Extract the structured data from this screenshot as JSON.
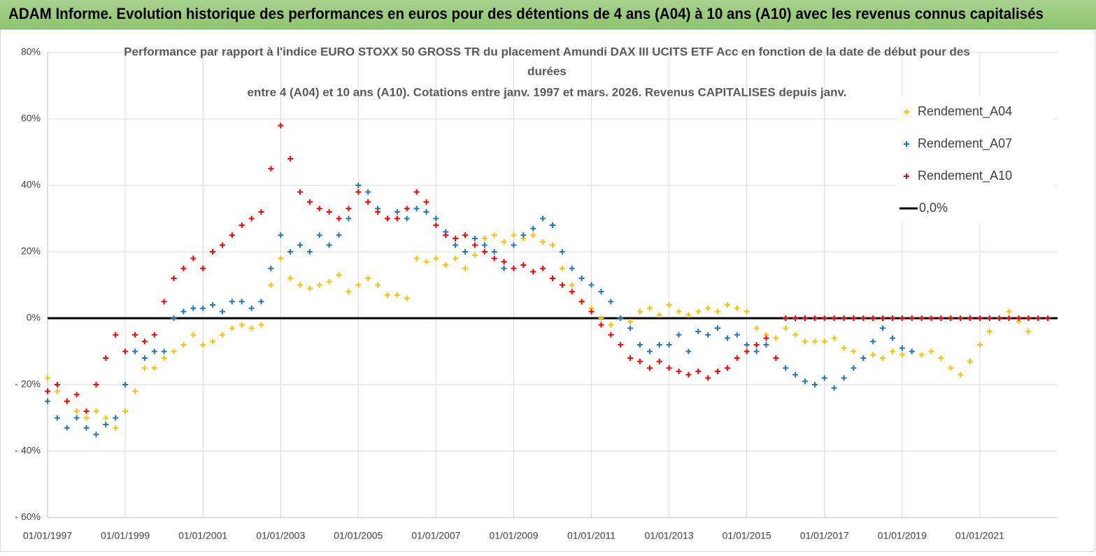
{
  "header": {
    "title": "ADAM Informe. Evolution historique des performances en euros pour des détentions de 4 ans (A04) à 10 ans (A10) avec les revenus connus capitalisés"
  },
  "chart_data": {
    "type": "scatter",
    "title": [
      "Performance par rapport à l'indice EURO STOXX 50 GROSS TR  du placement Amundi DAX III UCITS ETF Acc en fonction de la date de début pour des",
      "durées",
      "entre 4 (A04) et 10 ans (A10). Cotations entre janv. 1997 et mars. 2026. Revenus CAPITALISES depuis janv."
    ],
    "xlim": [
      1997,
      2023
    ],
    "xticks": [
      {
        "value": 1997,
        "label": "01/01/1997"
      },
      {
        "value": 1999,
        "label": "01/01/1999"
      },
      {
        "value": 2001,
        "label": "01/01/2001"
      },
      {
        "value": 2003,
        "label": "01/01/2003"
      },
      {
        "value": 2005,
        "label": "01/01/2005"
      },
      {
        "value": 2007,
        "label": "01/01/2007"
      },
      {
        "value": 2009,
        "label": "01/01/2009"
      },
      {
        "value": 2011,
        "label": "01/01/2011"
      },
      {
        "value": 2013,
        "label": "01/01/2013"
      },
      {
        "value": 2015,
        "label": "01/01/2015"
      },
      {
        "value": 2017,
        "label": "01/01/2017"
      },
      {
        "value": 2019,
        "label": "01/01/2019"
      },
      {
        "value": 2021,
        "label": "01/01/2021"
      }
    ],
    "ylim": [
      -60,
      80
    ],
    "yticks": [
      {
        "value": -60,
        "label": "- 60%"
      },
      {
        "value": -40,
        "label": "- 40%"
      },
      {
        "value": -20,
        "label": "- 20%"
      },
      {
        "value": 0,
        "label": "0%"
      },
      {
        "value": 20,
        "label": "20%"
      },
      {
        "value": 40,
        "label": "40%"
      },
      {
        "value": 60,
        "label": "60%"
      },
      {
        "value": 80,
        "label": "80%"
      }
    ],
    "grid": true,
    "x": [
      1997,
      1997.25,
      1997.5,
      1997.75,
      1998,
      1998.25,
      1998.5,
      1998.75,
      1999,
      1999.25,
      1999.5,
      1999.75,
      2000,
      2000.25,
      2000.5,
      2000.75,
      2001,
      2001.25,
      2001.5,
      2001.75,
      2002,
      2002.25,
      2002.5,
      2002.75,
      2003,
      2003.25,
      2003.5,
      2003.75,
      2004,
      2004.25,
      2004.5,
      2004.75,
      2005,
      2005.25,
      2005.5,
      2005.75,
      2006,
      2006.25,
      2006.5,
      2006.75,
      2007,
      2007.25,
      2007.5,
      2007.75,
      2008,
      2008.25,
      2008.5,
      2008.75,
      2009,
      2009.25,
      2009.5,
      2009.75,
      2010,
      2010.25,
      2010.5,
      2010.75,
      2011,
      2011.25,
      2011.5,
      2011.75,
      2012,
      2012.25,
      2012.5,
      2012.75,
      2013,
      2013.25,
      2013.5,
      2013.75,
      2014,
      2014.25,
      2014.5,
      2014.75,
      2015,
      2015.25,
      2015.5,
      2015.75,
      2016,
      2016.25,
      2016.5,
      2016.75,
      2017,
      2017.25,
      2017.5,
      2017.75,
      2018,
      2018.25,
      2018.5,
      2018.75,
      2019,
      2019.25,
      2019.5,
      2019.75,
      2020,
      2020.25,
      2020.5,
      2020.75,
      2021,
      2021.25,
      2021.5,
      2021.75,
      2022,
      2022.25,
      2022.5,
      2022.75
    ],
    "series": [
      {
        "name": "Rendement_A04",
        "color": "#ffc000",
        "values": [
          -18,
          -22,
          -25,
          -28,
          -30,
          -28,
          -30,
          -33,
          -28,
          -22,
          -15,
          -15,
          -12,
          -10,
          -8,
          -5,
          -8,
          -7,
          -5,
          -3,
          -2,
          -3,
          -2,
          10,
          18,
          12,
          10,
          9,
          10,
          11,
          13,
          8,
          10,
          12,
          10,
          7,
          7,
          6,
          18,
          17,
          18,
          16,
          18,
          15,
          19,
          24,
          25,
          23,
          25,
          24,
          25,
          23,
          22,
          15,
          10,
          5,
          3,
          0,
          -2,
          0,
          -1,
          2,
          3,
          1,
          4,
          2,
          1,
          2,
          3,
          2,
          4,
          3,
          2,
          -3,
          -5,
          -6,
          -3,
          -5,
          -7,
          -7,
          -7,
          -6,
          -9,
          -10,
          -12,
          -11,
          -12,
          -10,
          -11,
          -10,
          -11,
          -10,
          -12,
          -15,
          -17,
          -13,
          -8,
          -4,
          0,
          2,
          -1,
          -4,
          null,
          null
        ]
      },
      {
        "name": "Rendement_A07",
        "color": "#1f77c4",
        "values": [
          -25,
          -30,
          -33,
          -30,
          -33,
          -35,
          -32,
          -30,
          -20,
          -10,
          -12,
          -10,
          -10,
          0,
          2,
          3,
          3,
          4,
          2,
          5,
          5,
          3,
          5,
          15,
          25,
          20,
          22,
          20,
          25,
          22,
          25,
          30,
          40,
          38,
          33,
          30,
          32,
          30,
          33,
          32,
          30,
          26,
          22,
          20,
          24,
          22,
          20,
          15,
          22,
          25,
          27,
          30,
          28,
          20,
          15,
          12,
          10,
          8,
          5,
          0,
          -3,
          -8,
          -10,
          -8,
          -8,
          -5,
          -10,
          -4,
          -5,
          -3,
          -6,
          -5,
          -8,
          -10,
          -8,
          -12,
          -15,
          -17,
          -19,
          -20,
          -18,
          -21,
          -18,
          -15,
          -12,
          -7,
          -3,
          -6,
          -9,
          -10,
          null,
          null,
          null,
          null,
          null,
          null,
          null,
          null,
          null,
          null,
          null,
          null,
          null,
          null
        ]
      },
      {
        "name": "Rendement_A10",
        "color": "#ff0000",
        "values": [
          -22,
          -20,
          -25,
          -23,
          -28,
          -20,
          -12,
          -5,
          -10,
          -5,
          -7,
          -5,
          5,
          12,
          15,
          18,
          15,
          20,
          22,
          25,
          28,
          30,
          32,
          45,
          58,
          48,
          38,
          35,
          33,
          32,
          30,
          33,
          38,
          35,
          32,
          30,
          30,
          33,
          38,
          35,
          28,
          25,
          24,
          25,
          22,
          20,
          18,
          17,
          15,
          16,
          14,
          15,
          12,
          10,
          8,
          5,
          2,
          -2,
          -5,
          -8,
          -12,
          -13,
          -15,
          -13,
          -15,
          -16,
          -17,
          -16,
          -18,
          -16,
          -15,
          -12,
          -10,
          -8,
          -6,
          -12,
          0,
          0,
          0,
          0,
          0,
          0,
          0,
          0,
          0,
          0,
          0,
          0,
          0,
          0,
          0,
          0,
          0,
          0,
          0,
          0,
          0,
          0,
          0,
          0,
          0,
          0,
          0,
          0
        ]
      }
    ],
    "reference_line": {
      "name": "0,0%",
      "value": 0,
      "color": "#000000"
    }
  }
}
